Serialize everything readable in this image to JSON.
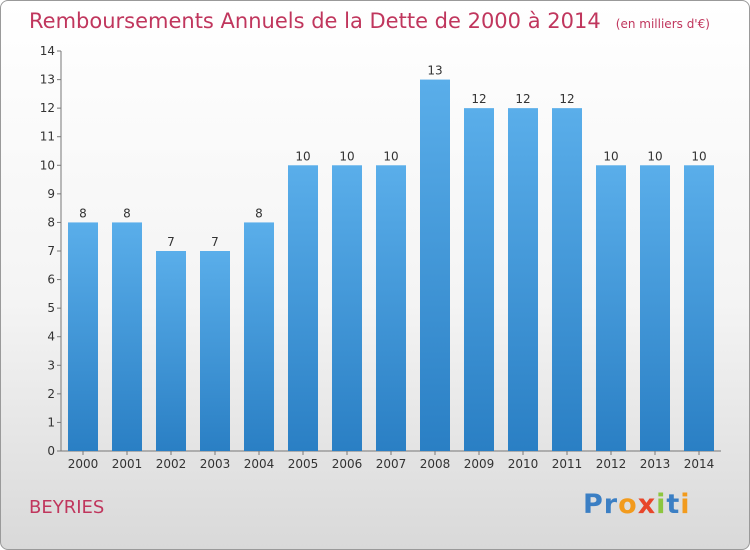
{
  "header": {
    "title": "Remboursements Annuels de la Dette de 2000 à 2014",
    "unit": "(en milliers d'€)"
  },
  "footer": {
    "commune": "BEYRIES",
    "logo": {
      "p": "P",
      "r": "r",
      "o": "o",
      "x": "x",
      "i1": "i",
      "t": "t",
      "i2": "i"
    }
  },
  "chart_data": {
    "type": "bar",
    "categories": [
      "2000",
      "2001",
      "2002",
      "2003",
      "2004",
      "2005",
      "2006",
      "2007",
      "2008",
      "2009",
      "2010",
      "2011",
      "2012",
      "2013",
      "2014"
    ],
    "values": [
      8,
      8,
      7,
      7,
      8,
      10,
      10,
      10,
      13,
      12,
      12,
      12,
      10,
      10,
      10
    ],
    "title": "Remboursements Annuels de la Dette de 2000 à 2014",
    "ylim": [
      0,
      14
    ],
    "yticks": [
      0,
      1,
      2,
      3,
      4,
      5,
      6,
      7,
      8,
      9,
      10,
      11,
      12,
      13,
      14
    ],
    "grid": false,
    "bar_color": "#4a9ee0",
    "label_color": "#333333"
  }
}
